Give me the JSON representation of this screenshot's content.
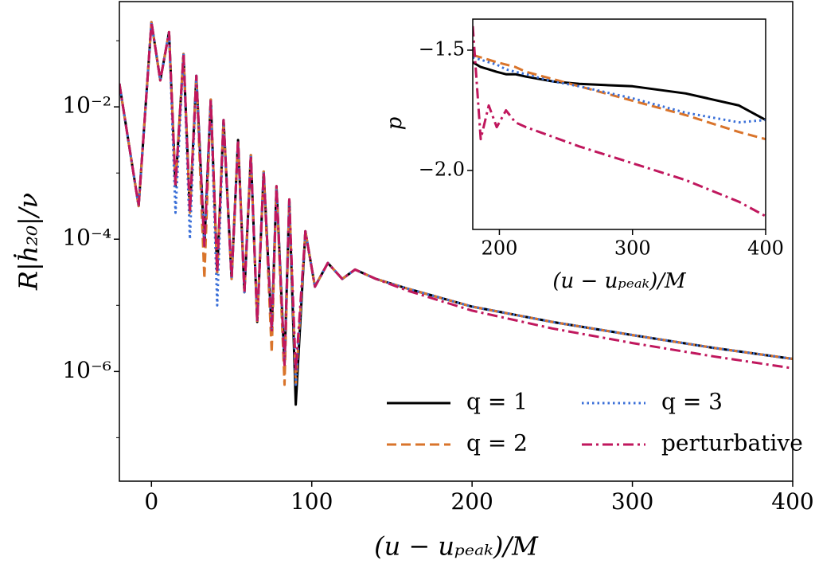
{
  "chart_data": [
    {
      "type": "line",
      "log_y": true,
      "xlabel": "(u − uₚₑₐₖ)/M",
      "ylabel": "R|ḣ₂₀|/ν",
      "xlim": [
        -20,
        400
      ],
      "ylim": [
        2.2e-08,
        0.39
      ],
      "xticks": [
        0,
        100,
        200,
        300,
        400
      ],
      "yticks": [
        {
          "value": 0.01,
          "label": "10⁻²"
        },
        {
          "value": 0.0001,
          "label": "10⁻⁴"
        },
        {
          "value": 1e-06,
          "label": "10⁻⁶"
        }
      ],
      "yminorticks": [
        0.1,
        0.001,
        1e-05,
        1e-07
      ],
      "legend": {
        "loc": "lower right",
        "ncol": 2
      },
      "x": [
        -20,
        -8,
        0,
        5.5,
        11,
        15,
        20,
        24,
        28,
        33,
        37,
        41,
        45,
        50,
        54,
        58,
        62,
        66,
        70,
        75,
        78,
        83,
        86,
        90,
        96,
        102,
        110,
        119,
        127,
        140,
        160,
        200,
        250,
        300,
        350,
        400
      ],
      "series": [
        {
          "name": "q = 1",
          "color": "#000000",
          "dash": "solid",
          "values": [
            0.0224,
            0.000316,
            0.1905,
            0.0251,
            0.1349,
            0.000631,
            0.0631,
            0.000251,
            0.0295,
            7.94e-05,
            0.0129,
            3.16e-05,
            0.00631,
            2.51e-05,
            0.00316,
            1.58e-05,
            0.00186,
            5.62e-06,
            0.00105,
            3.98e-06,
            0.000631,
            1.26e-06,
            0.000398,
            3.16e-07,
            0.000132,
            1.91e-05,
            4.37e-05,
            2.51e-05,
            3.47e-05,
            2.51e-05,
            1.78e-05,
            9.55e-06,
            5.62e-06,
            3.55e-06,
            2.29e-06,
            1.55e-06
          ]
        },
        {
          "name": "q = 2",
          "color": "#d9742b",
          "dash": "dashed",
          "values": [
            0.0224,
            0.000316,
            0.1905,
            0.0251,
            0.1349,
            0.000631,
            0.0631,
            0.000251,
            0.0295,
            2.51e-05,
            0.0129,
            3.16e-05,
            0.00631,
            2.51e-05,
            0.00316,
            1.58e-05,
            0.00186,
            5.62e-06,
            0.00105,
            1.91e-06,
            0.000631,
            6.31e-07,
            0.000398,
            6.31e-07,
            0.000132,
            1.91e-05,
            4.37e-05,
            2.51e-05,
            3.47e-05,
            2.51e-05,
            1.78e-05,
            9.55e-06,
            5.62e-06,
            3.55e-06,
            2.29e-06,
            1.55e-06
          ]
        },
        {
          "name": "q = 3",
          "color": "#3a6fd8",
          "dash": "dotted",
          "values": [
            0.0224,
            0.000316,
            0.1905,
            0.0251,
            0.1349,
            0.000251,
            0.0631,
            0.0001,
            0.0295,
            7.94e-05,
            0.0129,
            1e-05,
            0.00631,
            2.51e-05,
            0.00316,
            1.58e-05,
            0.00186,
            5.62e-06,
            0.00105,
            3.98e-06,
            0.000631,
            1.26e-06,
            0.000398,
            6.31e-07,
            0.000132,
            1.91e-05,
            4.37e-05,
            2.51e-05,
            3.47e-05,
            2.51e-05,
            1.78e-05,
            9.55e-06,
            5.62e-06,
            3.55e-06,
            2.29e-06,
            1.55e-06
          ]
        },
        {
          "name": "perturbative",
          "color": "#c0175d",
          "dash": "dashdot",
          "values": [
            0.0224,
            0.000316,
            0.1905,
            0.0251,
            0.1349,
            0.000631,
            0.0631,
            0.000251,
            0.0295,
            7.94e-05,
            0.0129,
            3.16e-05,
            0.00631,
            2.51e-05,
            0.00316,
            1.58e-05,
            0.00186,
            5.62e-06,
            0.00105,
            3.98e-06,
            0.000631,
            1.26e-06,
            0.000398,
            1e-06,
            0.000132,
            1.91e-05,
            4.37e-05,
            2.51e-05,
            3.47e-05,
            2.51e-05,
            1.66e-05,
            8.32e-06,
            4.47e-06,
            2.69e-06,
            1.7e-06,
            1.12e-06
          ]
        }
      ]
    },
    {
      "type": "line",
      "xlabel": "(u − uₚₑₐₖ)/M",
      "ylabel": "p",
      "xlim": [
        180,
        400
      ],
      "ylim": [
        -2.245,
        -1.371
      ],
      "xticks": [
        200,
        300,
        400
      ],
      "yticks": [
        {
          "value": -1.5,
          "label": "−1.5"
        },
        {
          "value": -2.0,
          "label": "−2.0"
        }
      ],
      "x": [
        180,
        186,
        192,
        198,
        205,
        212,
        220,
        240,
        260,
        300,
        340,
        380,
        400
      ],
      "series": [
        {
          "color": "#000000",
          "dash": "solid",
          "values": [
            -1.55,
            -1.57,
            -1.58,
            -1.59,
            -1.6,
            -1.6,
            -1.61,
            -1.63,
            -1.64,
            -1.65,
            -1.68,
            -1.73,
            -1.79
          ]
        },
        {
          "color": "#d9742b",
          "dash": "dashed",
          "values": [
            -1.52,
            -1.53,
            -1.54,
            -1.55,
            -1.56,
            -1.57,
            -1.59,
            -1.62,
            -1.65,
            -1.71,
            -1.77,
            -1.84,
            -1.87
          ]
        },
        {
          "color": "#3a6fd8",
          "dash": "dotted",
          "values": [
            -1.53,
            -1.54,
            -1.55,
            -1.56,
            -1.58,
            -1.59,
            -1.6,
            -1.63,
            -1.65,
            -1.7,
            -1.76,
            -1.8,
            -1.79
          ]
        },
        {
          "color": "#c0175d",
          "dash": "dashdot",
          "values": [
            -1.4,
            -1.87,
            -1.73,
            -1.82,
            -1.75,
            -1.8,
            -1.82,
            -1.86,
            -1.9,
            -1.97,
            -2.04,
            -2.13,
            -2.19
          ]
        }
      ]
    }
  ]
}
